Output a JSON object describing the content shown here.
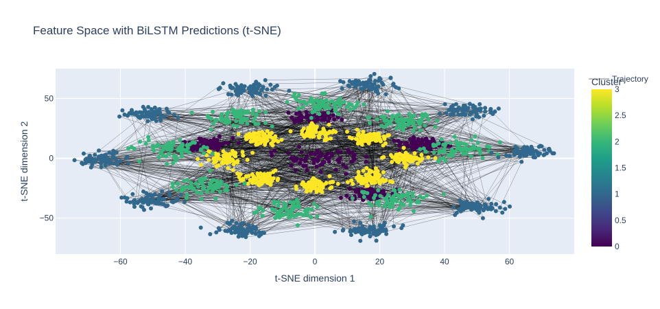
{
  "chart_data": {
    "type": "scatter",
    "title": "Feature Space with BiLSTM Predictions (t-SNE)",
    "xlabel": "t-SNE dimension 1",
    "ylabel": "t-SNE dimension 2",
    "xlim": [
      -80,
      80
    ],
    "ylim": [
      -80,
      75
    ],
    "x_ticks": [
      -60,
      -40,
      -20,
      0,
      20,
      40,
      60
    ],
    "y_ticks": [
      -50,
      0,
      50
    ],
    "grid": true,
    "legend": {
      "position": "top-right",
      "entries": [
        "Trajectory"
      ]
    },
    "colorbar": {
      "title": "Cluster",
      "range": [
        0,
        3
      ],
      "ticks": [
        "0",
        "0.5",
        "1",
        "1.5",
        "2",
        "2.5",
        "3"
      ],
      "colorscale": [
        "#440154",
        "#482878",
        "#3e4989",
        "#31688e",
        "#26828e",
        "#1f9e89",
        "#35b779",
        "#6ece58",
        "#b5de2b",
        "#fde725"
      ]
    },
    "series": [
      {
        "name": "Trajectory",
        "mode": "lines",
        "color": "#000000"
      },
      {
        "name": "Cluster",
        "mode": "markers"
      }
    ],
    "cluster_groups": [
      {
        "cluster": 0,
        "angle_deg": 0,
        "radius": 0,
        "spread": [
          14,
          8
        ]
      },
      {
        "cluster": 0,
        "angle_deg": 20,
        "radius": 35,
        "spread": [
          6,
          5
        ]
      },
      {
        "cluster": 0,
        "angle_deg": 160,
        "radius": 35,
        "spread": [
          6,
          5
        ]
      },
      {
        "cluster": 0,
        "angle_deg": 90,
        "radius": 35,
        "spread": [
          6,
          5
        ]
      },
      {
        "cluster": 0,
        "angle_deg": 300,
        "radius": 35,
        "spread": [
          6,
          5
        ]
      },
      {
        "cluster": 3,
        "angle_deg": 0,
        "radius": 28,
        "spread": [
          5,
          5
        ]
      },
      {
        "cluster": 3,
        "angle_deg": 45,
        "radius": 24,
        "spread": [
          5,
          5
        ]
      },
      {
        "cluster": 3,
        "angle_deg": 90,
        "radius": 22,
        "spread": [
          5,
          5
        ]
      },
      {
        "cluster": 3,
        "angle_deg": 135,
        "radius": 24,
        "spread": [
          5,
          5
        ]
      },
      {
        "cluster": 3,
        "angle_deg": 180,
        "radius": 28,
        "spread": [
          5,
          5
        ]
      },
      {
        "cluster": 3,
        "angle_deg": 225,
        "radius": 24,
        "spread": [
          5,
          5
        ]
      },
      {
        "cluster": 3,
        "angle_deg": 270,
        "radius": 22,
        "spread": [
          5,
          5
        ]
      },
      {
        "cluster": 3,
        "angle_deg": 315,
        "radius": 24,
        "spread": [
          5,
          5
        ]
      },
      {
        "cluster": 2,
        "angle_deg": 10,
        "radius": 45,
        "spread": [
          9,
          7
        ]
      },
      {
        "cluster": 2,
        "angle_deg": 50,
        "radius": 42,
        "spread": [
          8,
          7
        ]
      },
      {
        "cluster": 2,
        "angle_deg": 85,
        "radius": 45,
        "spread": [
          8,
          7
        ]
      },
      {
        "cluster": 2,
        "angle_deg": 125,
        "radius": 42,
        "spread": [
          8,
          7
        ]
      },
      {
        "cluster": 2,
        "angle_deg": 170,
        "radius": 45,
        "spread": [
          9,
          7
        ]
      },
      {
        "cluster": 2,
        "angle_deg": 215,
        "radius": 42,
        "spread": [
          8,
          7
        ]
      },
      {
        "cluster": 2,
        "angle_deg": 260,
        "radius": 45,
        "spread": [
          8,
          7
        ]
      },
      {
        "cluster": 2,
        "angle_deg": 305,
        "radius": 42,
        "spread": [
          8,
          7
        ]
      },
      {
        "cluster": 1,
        "angle_deg": 5,
        "radius": 66,
        "spread": [
          6,
          5
        ]
      },
      {
        "cluster": 1,
        "angle_deg": 40,
        "radius": 62,
        "spread": [
          7,
          5
        ]
      },
      {
        "cluster": 1,
        "angle_deg": 75,
        "radius": 64,
        "spread": [
          7,
          5
        ]
      },
      {
        "cluster": 1,
        "angle_deg": 110,
        "radius": 62,
        "spread": [
          7,
          5
        ]
      },
      {
        "cluster": 1,
        "angle_deg": 145,
        "radius": 64,
        "spread": [
          7,
          5
        ]
      },
      {
        "cluster": 1,
        "angle_deg": 180,
        "radius": 66,
        "spread": [
          6,
          5
        ]
      },
      {
        "cluster": 1,
        "angle_deg": 215,
        "radius": 62,
        "spread": [
          7,
          5
        ]
      },
      {
        "cluster": 1,
        "angle_deg": 250,
        "radius": 64,
        "spread": [
          7,
          5
        ]
      },
      {
        "cluster": 1,
        "angle_deg": 285,
        "radius": 62,
        "spread": [
          7,
          5
        ]
      },
      {
        "cluster": 1,
        "angle_deg": 320,
        "radius": 64,
        "spread": [
          7,
          5
        ]
      }
    ]
  }
}
